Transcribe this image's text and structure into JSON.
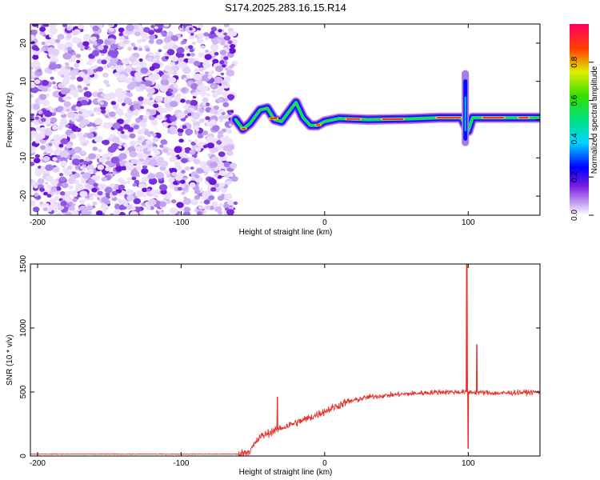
{
  "title": "S174.2025.283.16.15.R14",
  "chart_data": [
    {
      "type": "heatmap",
      "name": "spectrogram",
      "xlabel": "Height of straight line (km)",
      "ylabel": "Frequency (Hz)",
      "xlim": [
        -205,
        150
      ],
      "ylim": [
        -25,
        25
      ],
      "x_ticks": [
        -200,
        -100,
        0,
        100
      ],
      "y_ticks": [
        -20,
        -10,
        0,
        10,
        20
      ],
      "noise_region_x": [
        -205,
        -62
      ],
      "signal_track": [
        {
          "x": -62,
          "y": 0.0
        },
        {
          "x": -57,
          "y": -2.5
        },
        {
          "x": -52,
          "y": -1.0
        },
        {
          "x": -45,
          "y": 2.5
        },
        {
          "x": -40,
          "y": 3.0
        },
        {
          "x": -35,
          "y": 0.0
        },
        {
          "x": -30,
          "y": -0.5
        },
        {
          "x": -25,
          "y": 2.0
        },
        {
          "x": -20,
          "y": 4.5
        },
        {
          "x": -15,
          "y": 0.5
        },
        {
          "x": -10,
          "y": -1.5
        },
        {
          "x": -5,
          "y": -1.5
        },
        {
          "x": 0,
          "y": -0.5
        },
        {
          "x": 10,
          "y": 0.3
        },
        {
          "x": 30,
          "y": 0.0
        },
        {
          "x": 60,
          "y": 0.2
        },
        {
          "x": 80,
          "y": 0.5
        },
        {
          "x": 95,
          "y": 0.5
        },
        {
          "x": 100,
          "y": -3.0
        },
        {
          "x": 103,
          "y": 0.5
        },
        {
          "x": 150,
          "y": 0.5
        }
      ],
      "colorbar": {
        "label": "Normalized spectral amplitude",
        "range": [
          0,
          1
        ],
        "ticks": [
          "0.0",
          "0.2",
          "0.4",
          "0.6",
          "0.8"
        ]
      }
    },
    {
      "type": "line",
      "name": "snr",
      "xlabel": "Height of straight line (km)",
      "ylabel": "SNR (10 * v/v)",
      "xlim": [
        -205,
        150
      ],
      "ylim": [
        0,
        1500
      ],
      "x_ticks": [
        -200,
        -100,
        0,
        100
      ],
      "y_ticks": [
        0,
        500,
        1000,
        1500
      ],
      "color": "#e8302a",
      "series": [
        {
          "x": -205,
          "y": 15
        },
        {
          "x": -60,
          "y": 15
        },
        {
          "x": -52,
          "y": 40
        },
        {
          "x": -45,
          "y": 150
        },
        {
          "x": -35,
          "y": 200
        },
        {
          "x": -25,
          "y": 240
        },
        {
          "x": -10,
          "y": 300
        },
        {
          "x": 0,
          "y": 350
        },
        {
          "x": 15,
          "y": 420
        },
        {
          "x": 30,
          "y": 460
        },
        {
          "x": 50,
          "y": 480
        },
        {
          "x": 80,
          "y": 500
        },
        {
          "x": 100,
          "y": 500
        },
        {
          "x": 120,
          "y": 490
        },
        {
          "x": 150,
          "y": 500
        }
      ],
      "spikes": [
        {
          "x": -33,
          "y": 460
        },
        {
          "x": 99,
          "y": 1500
        },
        {
          "x": 100,
          "y": 60
        },
        {
          "x": 106,
          "y": 870
        }
      ]
    }
  ]
}
